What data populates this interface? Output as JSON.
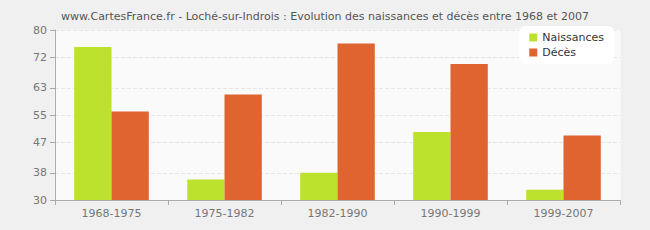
{
  "chart_data": {
    "type": "bar",
    "title": "www.CartesFrance.fr - Loché-sur-Indrois : Evolution des naissances et décès entre 1968 et 2007",
    "categories": [
      "1968-1975",
      "1975-1982",
      "1982-1990",
      "1990-1999",
      "1999-2007"
    ],
    "series": [
      {
        "name": "Naissances",
        "color": "#bde22e",
        "values": [
          75,
          36,
          38,
          50,
          33
        ]
      },
      {
        "name": "Décès",
        "color": "#e0642f",
        "values": [
          56,
          61,
          76,
          70,
          49
        ]
      }
    ],
    "ylim": [
      30,
      80
    ],
    "yticks": [
      30,
      38,
      47,
      55,
      63,
      72,
      80
    ],
    "grid": true,
    "legend": "top-right"
  }
}
